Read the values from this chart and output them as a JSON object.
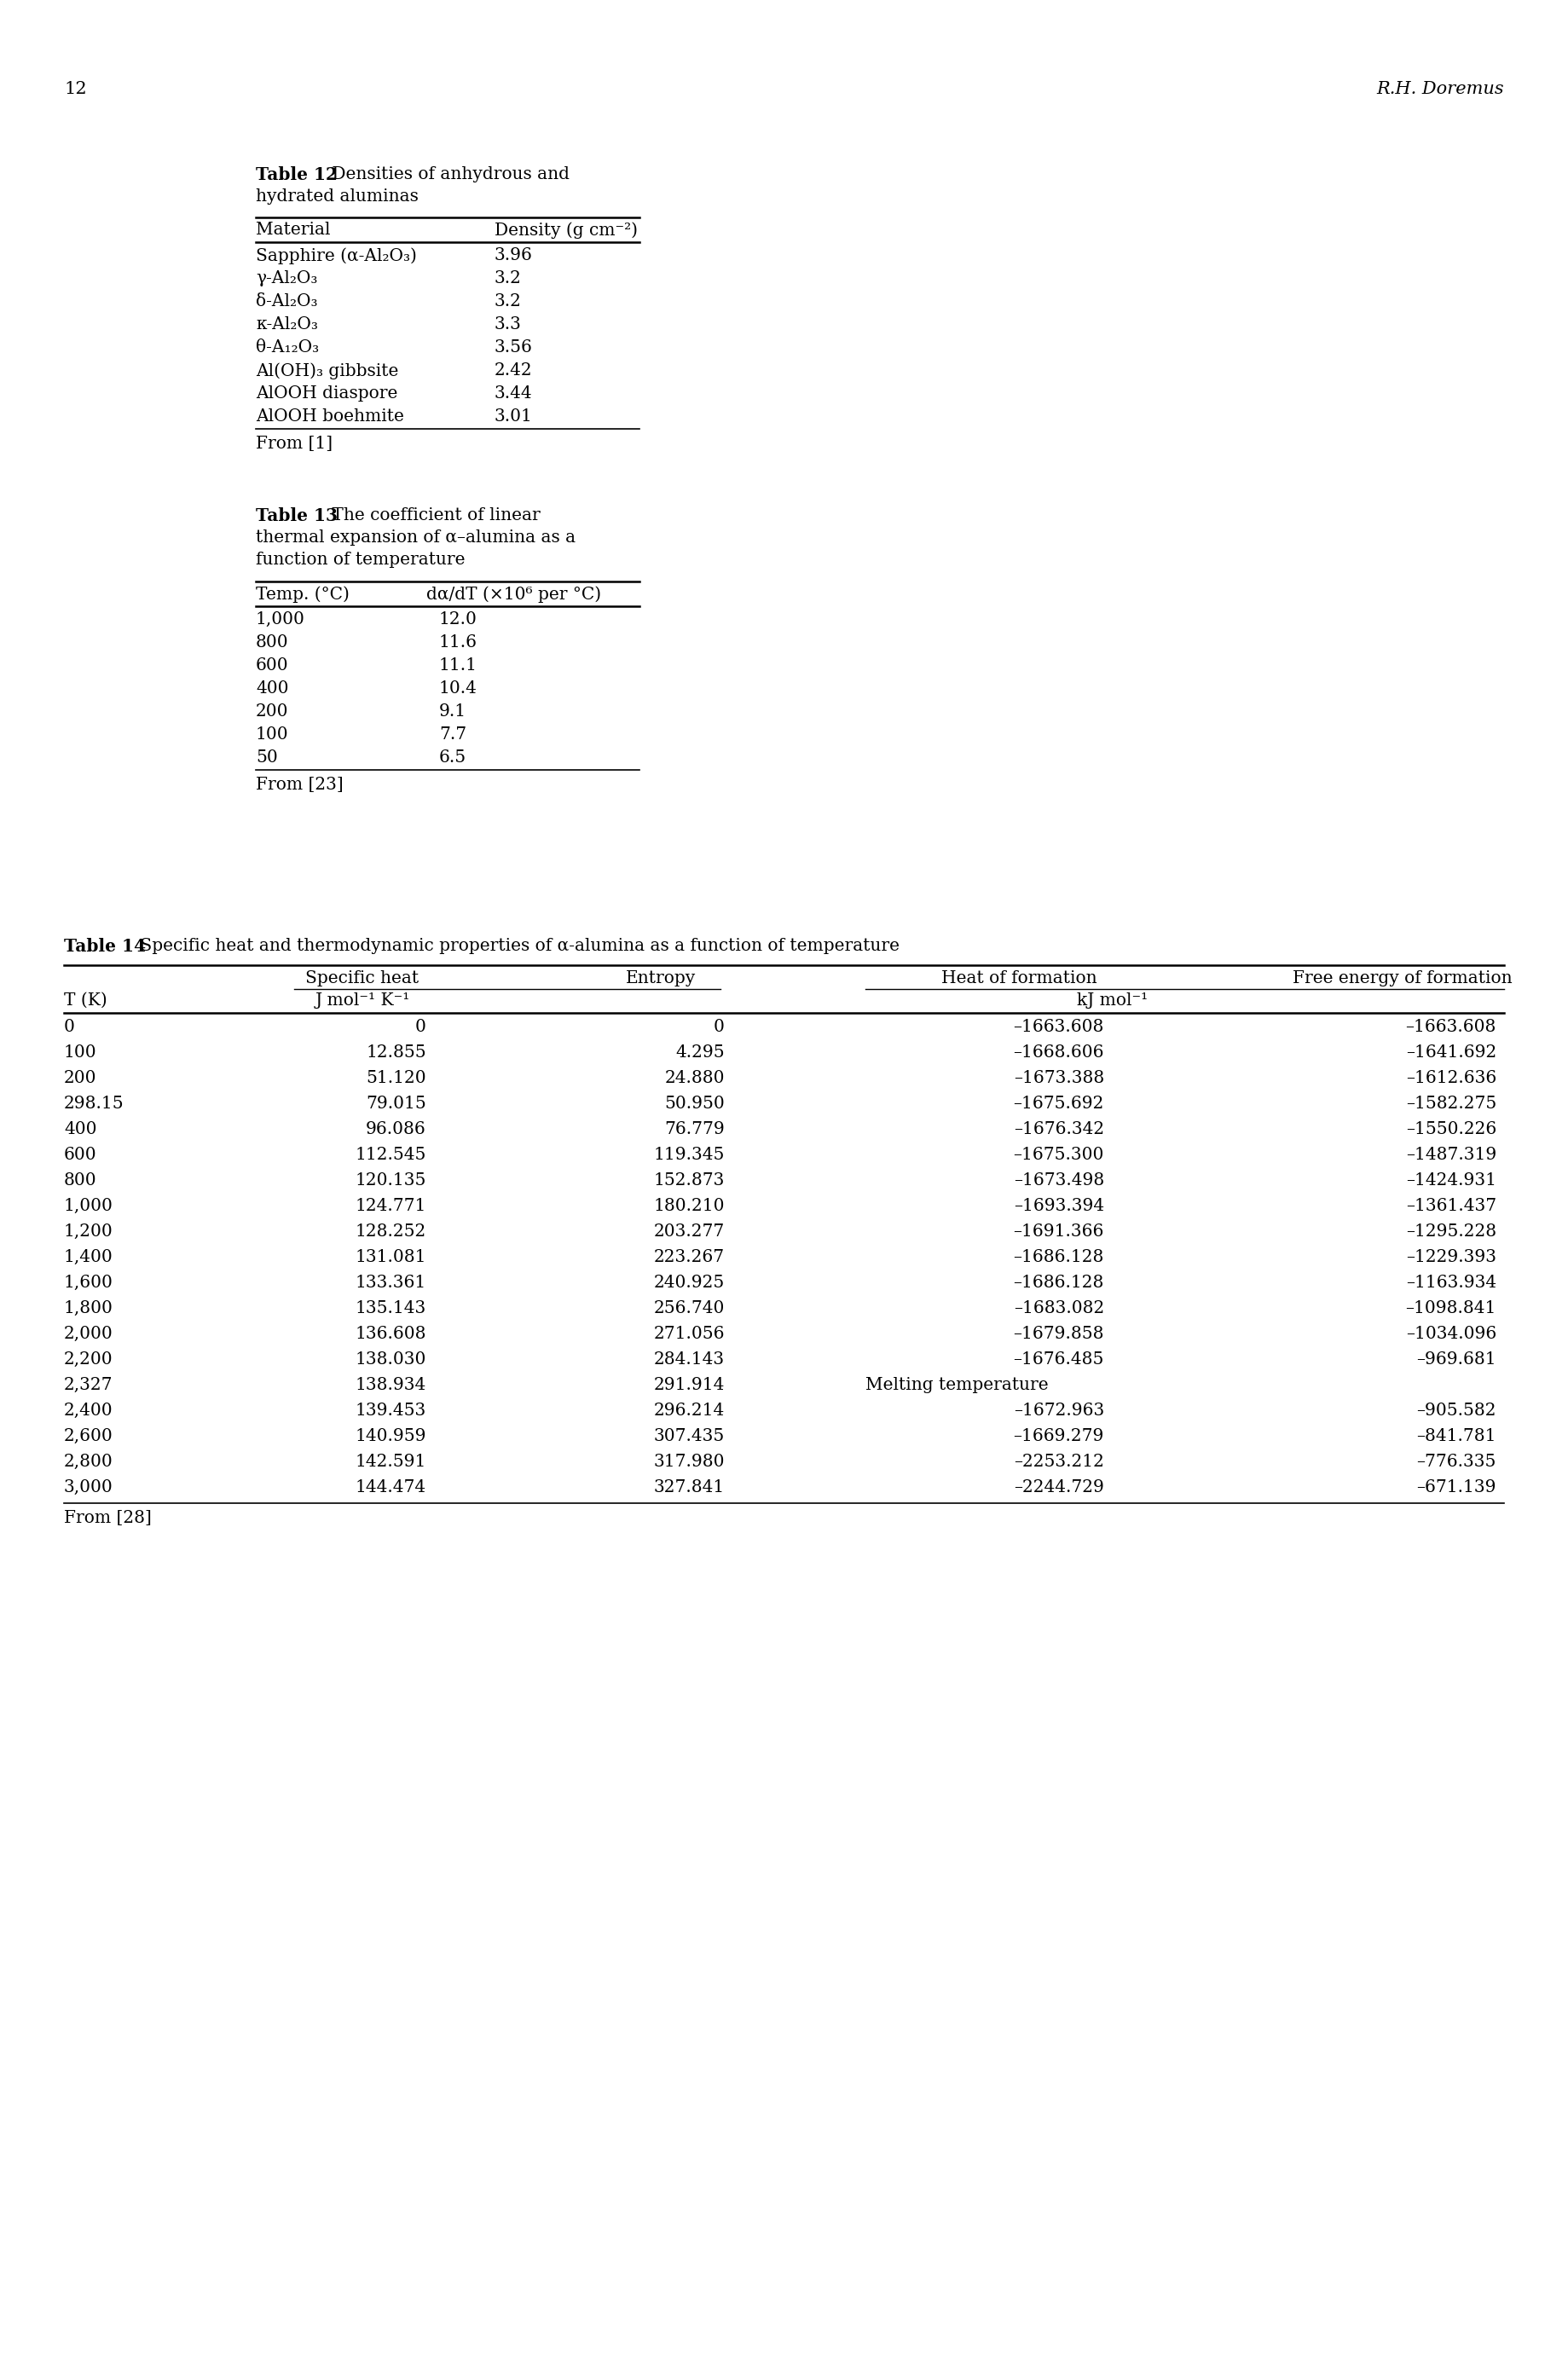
{
  "page_number": "12",
  "page_author": "R.H. Doremus",
  "background_color": "#ffffff",
  "text_color": "#000000",
  "table12": {
    "title_bold": "Table 12",
    "title_rest": " Densities of anhydrous and",
    "title_line2": "hydrated aluminas",
    "col1_header": "Material",
    "col2_header": "Density (g cm⁻²)",
    "rows": [
      [
        "Sapphire (α-Al₂O₃)",
        "3.96"
      ],
      [
        "γ-Al₂O₃",
        "3.2"
      ],
      [
        "δ-Al₂O₃",
        "3.2"
      ],
      [
        "κ-Al₂O₃",
        "3.3"
      ],
      [
        "θ-A₁₂O₃",
        "3.56"
      ],
      [
        "Al(OH)₃ gibbsite",
        "2.42"
      ],
      [
        "AlOOH diaspore",
        "3.44"
      ],
      [
        "AlOOH boehmite",
        "3.01"
      ]
    ],
    "footnote": "From [1]"
  },
  "table13": {
    "title_bold": "Table 13",
    "title_rest": " The coefficient of linear",
    "title_line2": "thermal expansion of α–alumina as a",
    "title_line3": "function of temperature",
    "col1_header": "Temp. (°C)",
    "col2_header": "dα/dT (×10⁶ per °C)",
    "rows": [
      [
        "1,000",
        "12.0"
      ],
      [
        "800",
        "11.6"
      ],
      [
        "600",
        "11.1"
      ],
      [
        "400",
        "10.4"
      ],
      [
        "200",
        "9.1"
      ],
      [
        "100",
        "7.7"
      ],
      [
        "50",
        "6.5"
      ]
    ],
    "footnote": "From [23]"
  },
  "table14": {
    "title_bold": "Table 14",
    "title_rest": " Specific heat and thermodynamic properties of α-alumina as a function of temperature",
    "col_headers_row1": [
      "Specific heat",
      "Entropy",
      "Heat of formation",
      "Free energy of formation"
    ],
    "col_headers_row2_tk": "T (K)",
    "col_headers_row2_unit1": "J mol⁻¹ K⁻¹",
    "col_headers_row2_unit2": "kJ mol⁻¹",
    "rows": [
      [
        "0",
        "0",
        "0",
        "–1663.608",
        "–1663.608"
      ],
      [
        "100",
        "12.855",
        "4.295",
        "–1668.606",
        "–1641.692"
      ],
      [
        "200",
        "51.120",
        "24.880",
        "–1673.388",
        "–1612.636"
      ],
      [
        "298.15",
        "79.015",
        "50.950",
        "–1675.692",
        "–1582.275"
      ],
      [
        "400",
        "96.086",
        "76.779",
        "–1676.342",
        "–1550.226"
      ],
      [
        "600",
        "112.545",
        "119.345",
        "–1675.300",
        "–1487.319"
      ],
      [
        "800",
        "120.135",
        "152.873",
        "–1673.498",
        "–1424.931"
      ],
      [
        "1,000",
        "124.771",
        "180.210",
        "–1693.394",
        "–1361.437"
      ],
      [
        "1,200",
        "128.252",
        "203.277",
        "–1691.366",
        "–1295.228"
      ],
      [
        "1,400",
        "131.081",
        "223.267",
        "–1686.128",
        "–1229.393"
      ],
      [
        "1,600",
        "133.361",
        "240.925",
        "–1686.128",
        "–1163.934"
      ],
      [
        "1,800",
        "135.143",
        "256.740",
        "–1683.082",
        "–1098.841"
      ],
      [
        "2,000",
        "136.608",
        "271.056",
        "–1679.858",
        "–1034.096"
      ],
      [
        "2,200",
        "138.030",
        "284.143",
        "–1676.485",
        "–969.681"
      ],
      [
        "2,327",
        "138.934",
        "291.914",
        "Melting temperature",
        ""
      ],
      [
        "2,400",
        "139.453",
        "296.214",
        "–1672.963",
        "–905.582"
      ],
      [
        "2,600",
        "140.959",
        "307.435",
        "–1669.279",
        "–841.781"
      ],
      [
        "2,800",
        "142.591",
        "317.980",
        "–2253.212",
        "–776.335"
      ],
      [
        "3,000",
        "144.474",
        "327.841",
        "–2244.729",
        "–671.139"
      ]
    ],
    "footnote": "From [28]"
  }
}
